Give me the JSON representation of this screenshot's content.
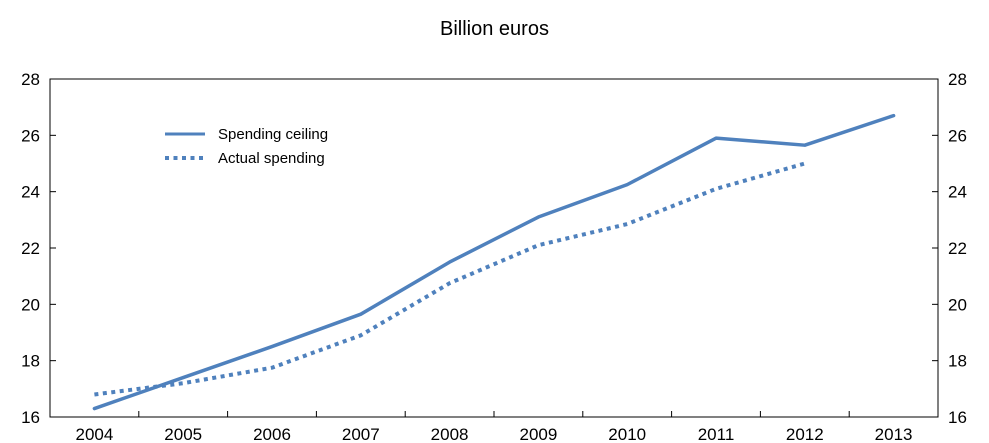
{
  "chart_data": {
    "type": "line",
    "title": "Billion euros",
    "xlabel": "",
    "ylabel": "",
    "categories": [
      "2004",
      "2005",
      "2006",
      "2007",
      "2008",
      "2009",
      "2010",
      "2011",
      "2012",
      "2013"
    ],
    "ylim": [
      16,
      28
    ],
    "yticks": [
      16,
      18,
      20,
      22,
      24,
      26,
      28
    ],
    "grid": false,
    "legend_position": "top-left",
    "series": [
      {
        "name": "Spending ceiling",
        "style": "solid",
        "color": "#4f81bd",
        "values": [
          16.3,
          17.4,
          18.5,
          19.65,
          21.5,
          23.1,
          24.25,
          25.9,
          25.65,
          26.7
        ]
      },
      {
        "name": "Actual spending",
        "style": "dotted",
        "color": "#4f81bd",
        "values": [
          16.8,
          17.2,
          17.75,
          18.9,
          20.75,
          22.1,
          22.85,
          24.1,
          25.0,
          null
        ]
      }
    ]
  }
}
